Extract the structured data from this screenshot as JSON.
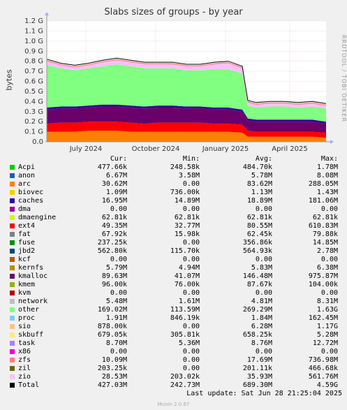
{
  "title": "Slabs sizes of groups - by year",
  "ylabel": "bytes",
  "watermark": "RRDTOOL / TOBI OETIKER",
  "columns": [
    "Cur:",
    "Min:",
    "Avg:",
    "Max:"
  ],
  "legend": [
    {
      "name": "Acpi",
      "color": "#00cc00",
      "cur": "477.66k",
      "min": "248.58k",
      "avg": "484.70k",
      "max": "1.78M"
    },
    {
      "name": "anon",
      "color": "#0066b3",
      "cur": "6.67M",
      "min": "3.58M",
      "avg": "5.78M",
      "max": "8.08M"
    },
    {
      "name": "arc",
      "color": "#ff8000",
      "cur": "30.62M",
      "min": "0.00",
      "avg": "83.62M",
      "max": "288.05M"
    },
    {
      "name": "biovec",
      "color": "#ffcc00",
      "cur": "1.09M",
      "min": "736.00k",
      "avg": "1.13M",
      "max": "1.43M"
    },
    {
      "name": "caches",
      "color": "#330099",
      "cur": "16.95M",
      "min": "14.89M",
      "avg": "18.89M",
      "max": "181.06M"
    },
    {
      "name": "dma",
      "color": "#990099",
      "cur": "0.00",
      "min": "0.00",
      "avg": "0.00",
      "max": "0.00"
    },
    {
      "name": "dmaengine",
      "color": "#ccff00",
      "cur": "62.81k",
      "min": "62.81k",
      "avg": "62.81k",
      "max": "62.81k"
    },
    {
      "name": "ext4",
      "color": "#ff0000",
      "cur": "49.35M",
      "min": "32.77M",
      "avg": "80.55M",
      "max": "610.83M"
    },
    {
      "name": "fat",
      "color": "#808080",
      "cur": "67.92k",
      "min": "15.98k",
      "avg": "62.45k",
      "max": "79.88k"
    },
    {
      "name": "fuse",
      "color": "#008f00",
      "cur": "237.25k",
      "min": "0.00",
      "avg": "356.86k",
      "max": "14.85M"
    },
    {
      "name": "jbd2",
      "color": "#00487d",
      "cur": "562.80k",
      "min": "115.70k",
      "avg": "564.93k",
      "max": "2.78M"
    },
    {
      "name": "kcf",
      "color": "#b35a00",
      "cur": "0.00",
      "min": "0.00",
      "avg": "0.00",
      "max": "0.00"
    },
    {
      "name": "kernfs",
      "color": "#b38f00",
      "cur": "5.79M",
      "min": "4.94M",
      "avg": "5.83M",
      "max": "6.38M"
    },
    {
      "name": "kmalloc",
      "color": "#6b006b",
      "cur": "89.63M",
      "min": "41.07M",
      "avg": "146.48M",
      "max": "975.87M"
    },
    {
      "name": "kmem",
      "color": "#8fb300",
      "cur": "96.00k",
      "min": "76.00k",
      "avg": "87.67k",
      "max": "104.00k"
    },
    {
      "name": "kvm",
      "color": "#b30000",
      "cur": "0.00",
      "min": "0.00",
      "avg": "0.00",
      "max": "0.00"
    },
    {
      "name": "network",
      "color": "#bebebe",
      "cur": "5.48M",
      "min": "1.61M",
      "avg": "4.81M",
      "max": "8.31M"
    },
    {
      "name": "other",
      "color": "#80ff80",
      "cur": "169.02M",
      "min": "113.59M",
      "avg": "269.29M",
      "max": "1.63G"
    },
    {
      "name": "proc",
      "color": "#80c9ff",
      "cur": "1.91M",
      "min": "846.19k",
      "avg": "1.84M",
      "max": "162.45M"
    },
    {
      "name": "sio",
      "color": "#ffc080",
      "cur": "878.00k",
      "min": "0.00",
      "avg": "6.28M",
      "max": "1.17G"
    },
    {
      "name": "skbuff",
      "color": "#ffe680",
      "cur": "679.05k",
      "min": "305.81k",
      "avg": "658.25k",
      "max": "5.28M"
    },
    {
      "name": "task",
      "color": "#aa80ff",
      "cur": "8.70M",
      "min": "5.36M",
      "avg": "8.76M",
      "max": "12.72M"
    },
    {
      "name": "x86",
      "color": "#ee00cc",
      "cur": "0.00",
      "min": "0.00",
      "avg": "0.00",
      "max": "0.00"
    },
    {
      "name": "zfs",
      "color": "#ff8080",
      "cur": "10.09M",
      "min": "0.00",
      "avg": "17.69M",
      "max": "736.98M"
    },
    {
      "name": "zil",
      "color": "#666600",
      "cur": "203.25k",
      "min": "0.00",
      "avg": "201.11k",
      "max": "466.68k"
    },
    {
      "name": "zio",
      "color": "#ffbfff",
      "cur": "28.53M",
      "min": "203.02k",
      "avg": "35.93M",
      "max": "561.76M"
    },
    {
      "name": "Total",
      "color": "#000000",
      "cur": "427.03M",
      "min": "242.73M",
      "avg": "689.30M",
      "max": "4.59G"
    }
  ],
  "footer": "Last update: Sat Jun 28 21:25:04 2025",
  "munin": "Munin 2.0.67",
  "chart_data": {
    "type": "area",
    "title": "Slabs sizes of groups - by year",
    "ylabel": "bytes",
    "ylim": [
      0,
      1.2
    ],
    "yunit": "G",
    "yticks": [
      "0.0",
      "0.1 G",
      "0.2 G",
      "0.3 G",
      "0.4 G",
      "0.5 G",
      "0.6 G",
      "0.7 G",
      "0.8 G",
      "0.9 G",
      "1.0 G",
      "1.1 G",
      "1.2 G"
    ],
    "xticks": [
      "July 2024",
      "October 2024",
      "January 2025",
      "April 2025"
    ],
    "xtick_pos": [
      0.14,
      0.39,
      0.64,
      0.87
    ],
    "stack_note": "stacked area, values in G bytes (sampled over time)",
    "x": [
      0,
      0.05,
      0.1,
      0.15,
      0.2,
      0.25,
      0.3,
      0.35,
      0.4,
      0.45,
      0.5,
      0.55,
      0.6,
      0.65,
      0.7,
      0.72,
      0.75,
      0.8,
      0.85,
      0.9,
      0.95,
      1.0
    ],
    "series": [
      {
        "name": "arc",
        "color": "#ff8000",
        "values": [
          0.1,
          0.1,
          0.1,
          0.11,
          0.11,
          0.11,
          0.1,
          0.1,
          0.1,
          0.1,
          0.1,
          0.1,
          0.1,
          0.1,
          0.09,
          0.05,
          0.05,
          0.05,
          0.05,
          0.05,
          0.05,
          0.04
        ]
      },
      {
        "name": "ext4",
        "color": "#ff0000",
        "values": [
          0.08,
          0.09,
          0.09,
          0.09,
          0.09,
          0.09,
          0.09,
          0.08,
          0.09,
          0.09,
          0.09,
          0.09,
          0.08,
          0.08,
          0.08,
          0.06,
          0.05,
          0.05,
          0.05,
          0.05,
          0.05,
          0.05
        ]
      },
      {
        "name": "kmalloc",
        "color": "#6b006b",
        "values": [
          0.14,
          0.14,
          0.14,
          0.14,
          0.15,
          0.15,
          0.15,
          0.15,
          0.15,
          0.15,
          0.14,
          0.14,
          0.14,
          0.14,
          0.13,
          0.1,
          0.1,
          0.1,
          0.1,
          0.1,
          0.1,
          0.09
        ]
      },
      {
        "name": "caches",
        "color": "#330099",
        "values": [
          0.02,
          0.02,
          0.02,
          0.02,
          0.02,
          0.02,
          0.02,
          0.02,
          0.02,
          0.02,
          0.02,
          0.02,
          0.02,
          0.02,
          0.02,
          0.02,
          0.02,
          0.02,
          0.02,
          0.02,
          0.02,
          0.02
        ]
      },
      {
        "name": "other",
        "color": "#80ff80",
        "values": [
          0.42,
          0.38,
          0.36,
          0.37,
          0.38,
          0.4,
          0.39,
          0.38,
          0.37,
          0.37,
          0.36,
          0.36,
          0.38,
          0.38,
          0.36,
          0.13,
          0.12,
          0.13,
          0.13,
          0.12,
          0.13,
          0.13
        ]
      },
      {
        "name": "zio",
        "color": "#ffbfff",
        "values": [
          0.04,
          0.03,
          0.03,
          0.03,
          0.04,
          0.04,
          0.04,
          0.04,
          0.04,
          0.04,
          0.04,
          0.04,
          0.05,
          0.06,
          0.05,
          0.03,
          0.03,
          0.03,
          0.03,
          0.03,
          0.03,
          0.03
        ]
      },
      {
        "name": "zfs",
        "color": "#ff8080",
        "values": [
          0.01,
          0.01,
          0.01,
          0.01,
          0.01,
          0.01,
          0.01,
          0.01,
          0.01,
          0.01,
          0.01,
          0.01,
          0.01,
          0.01,
          0.01,
          0.01,
          0.01,
          0.01,
          0.01,
          0.01,
          0.01,
          0.01
        ]
      }
    ]
  }
}
